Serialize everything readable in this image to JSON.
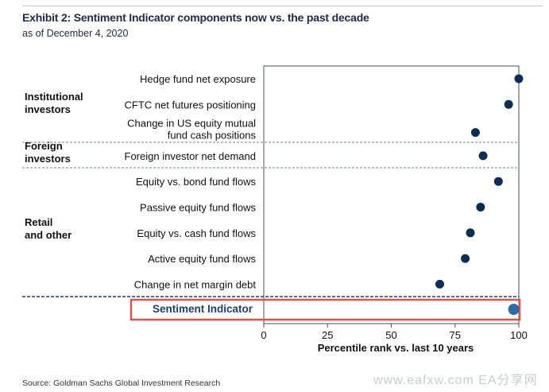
{
  "header": {
    "title": "Exhibit 2: Sentiment Indicator components now vs. the past decade",
    "subtitle": "as of December 4, 2020"
  },
  "footer": {
    "source": "Source: Goldman Sachs Global Investment Research",
    "watermark": "www.eafxw.com   EA分享网"
  },
  "colors": {
    "dot": "#0f2d52",
    "summary_dot": "#2f6aa3",
    "highlight_box": "#d9534f",
    "separator": "#7a7f88",
    "summary_separator": "#1f3d6b"
  },
  "chart_data": {
    "type": "scatter",
    "xlabel": "Percentile rank vs. last 10 years",
    "xlim": [
      0,
      100
    ],
    "xticks": [
      0,
      25,
      50,
      75,
      100
    ],
    "groups": [
      {
        "name": "Institutional\ninvestors",
        "items": [
          0,
          1,
          2
        ]
      },
      {
        "name": "Foreign\ninvestors",
        "items": [
          3
        ]
      },
      {
        "name": "Retail\nand other",
        "items": [
          4,
          5,
          6,
          7,
          8
        ]
      }
    ],
    "categories": [
      "Hedge fund net exposure",
      "CFTC net futures positioning",
      "Change in US equity mutual\nfund cash positions",
      "Foreign investor net demand",
      "Equity vs. bond fund flows",
      "Passive equity fund flows",
      "Equity vs. cash fund flows",
      "Active equity fund flows",
      "Change in net margin debt"
    ],
    "values": [
      100,
      96,
      83,
      86,
      92,
      85,
      81,
      79,
      69
    ],
    "summary": {
      "label": "Sentiment Indicator",
      "value": 98
    }
  }
}
